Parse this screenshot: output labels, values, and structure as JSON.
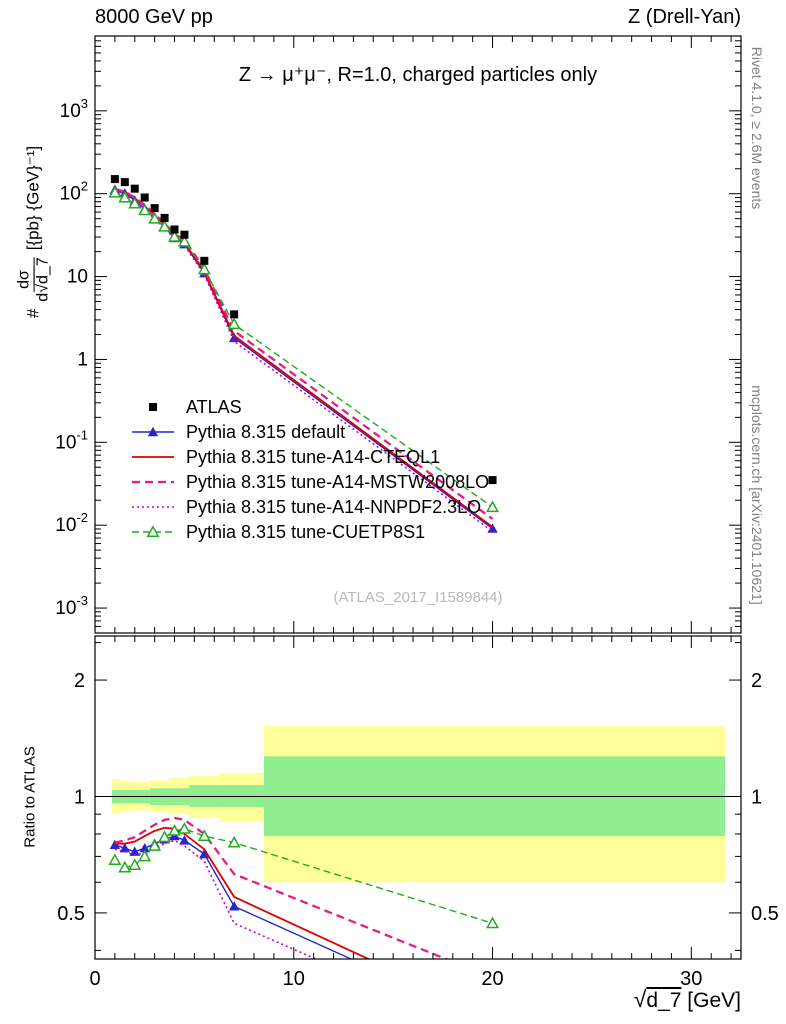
{
  "header": {
    "left": "8000 GeV pp",
    "right": "Z (Drell-Yan)"
  },
  "side_notes": {
    "top_right": "Rivet 4.1.0, ≥ 2.6M events",
    "bottom_right": "mcplots.cern.ch [arXiv:2401.10621]"
  },
  "main_panel": {
    "title": "Z → μ⁺μ⁻, R=1.0, charged particles only",
    "watermark": "(ATLAS_2017_I1589844)",
    "ylabel_prefix": "#",
    "ylabel_frac_num": "dσ",
    "ylabel_frac_den_prefix": "d√",
    "ylabel_frac_den_root": "d_7",
    "ylabel_units": "[{pb} {GeV}⁻¹]"
  },
  "ratio_panel": {
    "ylabel": "Ratio to ATLAS"
  },
  "x_axis": {
    "sqrt": "√",
    "root": "d_7",
    "units": "[GeV]"
  },
  "chart_data": {
    "type": "line",
    "title": "Z → μ⁺μ⁻, R=1.0, charged particles only",
    "xlabel": "√d_7 [GeV]",
    "ylabel_main": "# dσ/d√d_7 [{pb} {GeV}⁻¹]",
    "ylabel_ratio": "Ratio to ATLAS",
    "x_range": [
      0,
      32.5
    ],
    "main_y_range": [
      0.0005,
      8000
    ],
    "ratio_y_range": [
      0.38,
      2.6
    ],
    "x_ticks": [
      0,
      10,
      20,
      30
    ],
    "main_y_ticks": [
      {
        "v": 1000,
        "base": "10",
        "exp": "3"
      },
      {
        "v": 100,
        "base": "10",
        "exp": "2"
      },
      {
        "v": 10,
        "base": "10",
        "exp": ""
      },
      {
        "v": 1,
        "base": "1",
        "exp": ""
      },
      {
        "v": 0.1,
        "base": "10",
        "exp": "-1"
      },
      {
        "v": 0.01,
        "base": "10",
        "exp": "-2"
      },
      {
        "v": 0.001,
        "base": "10",
        "exp": "-3"
      }
    ],
    "ratio_y_ticks": [
      {
        "v": 0.5,
        "label": "0.5"
      },
      {
        "v": 1,
        "label": "1"
      },
      {
        "v": 2,
        "label": "2"
      }
    ],
    "ratio_y_minor_ticks": [
      0.4,
      0.6,
      0.7,
      0.8,
      0.9,
      2.5
    ],
    "ratio_reference": 1,
    "data_rel_err": 0.1,
    "x": [
      1,
      1.5,
      2,
      2.5,
      3,
      3.5,
      4,
      4.5,
      5.5,
      7,
      20
    ],
    "series": [
      {
        "name": "ATLAS",
        "color": "#000000",
        "marker": "square",
        "line": false,
        "dash": "",
        "width": 1.2,
        "values": [
          150,
          138,
          115,
          90,
          67,
          51,
          37,
          32,
          15.5,
          3.5,
          0.035
        ],
        "ratio": null
      },
      {
        "name": "Pythia 8.315 default",
        "color": "#2727cc",
        "marker": "triangle",
        "line": true,
        "dash": "",
        "width": 1.4,
        "values": [
          112,
          101,
          83,
          66,
          50.6,
          39.5,
          29.2,
          24.6,
          11.0,
          1.82,
          0.0091
        ],
        "ratio": [
          0.75,
          0.735,
          0.72,
          0.735,
          0.755,
          0.775,
          0.79,
          0.77,
          0.71,
          0.52,
          0.26
        ]
      },
      {
        "name": "Pythia 8.315 tune-A14-CTEQL1",
        "color": "#dd0000",
        "marker": "none",
        "line": true,
        "dash": "",
        "width": 1.8,
        "values": [
          113,
          104,
          88,
          71,
          54.6,
          42.3,
          30.5,
          25.6,
          11.3,
          1.93,
          0.0095
        ],
        "ratio": [
          0.755,
          0.755,
          0.765,
          0.79,
          0.815,
          0.83,
          0.825,
          0.8,
          0.73,
          0.55,
          0.27
        ]
      },
      {
        "name": "Pythia 8.315 tune-A14-MSTW2008LO",
        "color": "#e61e82",
        "marker": "none",
        "line": true,
        "dash": "8 5",
        "width": 2.3,
        "values": [
          114,
          106,
          90,
          73,
          56.6,
          44.4,
          32.6,
          27.8,
          12.4,
          2.21,
          0.0119
        ],
        "ratio": [
          0.76,
          0.77,
          0.785,
          0.815,
          0.845,
          0.87,
          0.88,
          0.87,
          0.8,
          0.63,
          0.34
        ]
      },
      {
        "name": "Pythia 8.315 tune-A14-NNPDF2.3LO",
        "color": "#cc00cc",
        "marker": "none",
        "line": true,
        "dash": "2 3",
        "width": 1.6,
        "values": [
          109.5,
          99,
          81,
          64,
          49.2,
          38.5,
          28.5,
          23.8,
          10.5,
          1.65,
          0.0084
        ],
        "ratio": [
          0.73,
          0.72,
          0.705,
          0.715,
          0.735,
          0.755,
          0.77,
          0.745,
          0.68,
          0.47,
          0.24
        ]
      },
      {
        "name": "Pythia 8.315 tune-CUETP8S1",
        "color": "#22aa22",
        "marker": "open-triangle",
        "line": true,
        "dash": "7 4",
        "width": 1.4,
        "values": [
          103,
          90,
          76,
          63,
          49.9,
          40.0,
          30.2,
          26.4,
          12.2,
          2.66,
          0.0165
        ],
        "ratio": [
          0.685,
          0.655,
          0.665,
          0.7,
          0.745,
          0.785,
          0.815,
          0.825,
          0.79,
          0.76,
          0.47
        ]
      }
    ],
    "bands": {
      "yellow": {
        "color": "#ffff99",
        "segments": [
          {
            "x1": 0.85,
            "x2": 1.25,
            "lo": 0.9,
            "hi": 1.11
          },
          {
            "x1": 1.25,
            "x2": 1.75,
            "lo": 0.91,
            "hi": 1.1
          },
          {
            "x1": 1.75,
            "x2": 2.75,
            "lo": 0.92,
            "hi": 1.09
          },
          {
            "x1": 2.75,
            "x2": 3.75,
            "lo": 0.91,
            "hi": 1.1
          },
          {
            "x1": 3.75,
            "x2": 4.75,
            "lo": 0.9,
            "hi": 1.12
          },
          {
            "x1": 4.75,
            "x2": 6.25,
            "lo": 0.88,
            "hi": 1.13
          },
          {
            "x1": 6.25,
            "x2": 8.5,
            "lo": 0.86,
            "hi": 1.15
          },
          {
            "x1": 8.5,
            "x2": 31.7,
            "lo": 0.6,
            "hi": 1.52
          }
        ]
      },
      "green": {
        "color": "#90ee90",
        "segments": [
          {
            "x1": 0.85,
            "x2": 2.75,
            "lo": 0.96,
            "hi": 1.04
          },
          {
            "x1": 2.75,
            "x2": 4.75,
            "lo": 0.95,
            "hi": 1.05
          },
          {
            "x1": 4.75,
            "x2": 8.5,
            "lo": 0.94,
            "hi": 1.07
          },
          {
            "x1": 8.5,
            "x2": 31.7,
            "lo": 0.79,
            "hi": 1.27
          }
        ]
      }
    }
  }
}
